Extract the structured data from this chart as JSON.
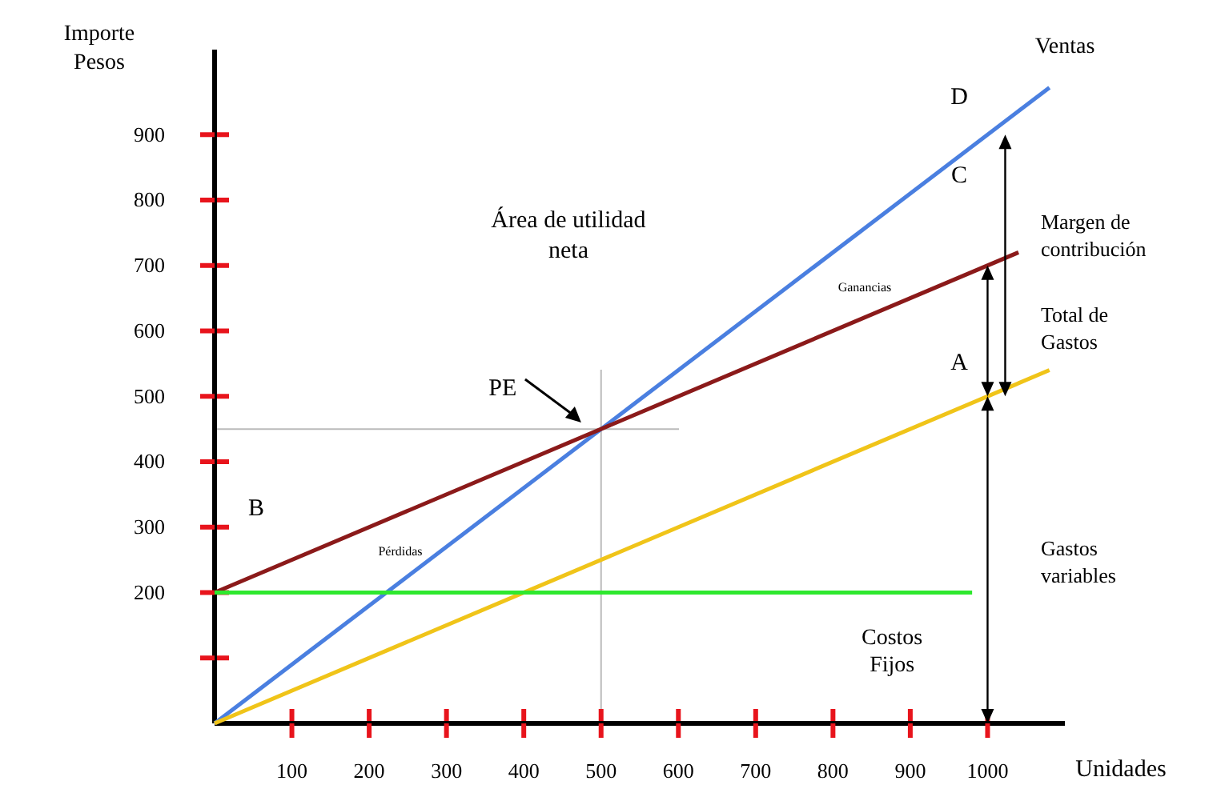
{
  "chart_data": {
    "type": "line",
    "xlabel": "Unidades",
    "ylabel": "Importe Pesos",
    "xlim": [
      0,
      1100
    ],
    "ylim": [
      0,
      1030
    ],
    "xticks": [
      100,
      200,
      300,
      400,
      500,
      600,
      700,
      800,
      900,
      1000
    ],
    "yticks": [
      {
        "value": 100,
        "label": null
      },
      200,
      300,
      400,
      500,
      600,
      700,
      800,
      900
    ],
    "grid": false,
    "line_style": "solid",
    "series": [
      {
        "name": "Ventas",
        "color": "#4a7fe0",
        "x": [
          0,
          1080
        ],
        "values": [
          0,
          972
        ]
      },
      {
        "color": "#8b1a1a",
        "x": [
          0,
          1040
        ],
        "values": [
          200,
          720
        ]
      },
      {
        "color": "#f0c419",
        "x": [
          0,
          1080
        ],
        "values": [
          0,
          540
        ]
      },
      {
        "name": "Costos Fijos",
        "color": "#2ee82e",
        "x": [
          0,
          980
        ],
        "values": [
          200,
          200
        ]
      }
    ],
    "ref_lines": [
      {
        "axis": "x",
        "value": 500,
        "color": "#bbbbbb"
      },
      {
        "axis": "y",
        "value": 450,
        "color": "#bbbbbb"
      }
    ],
    "annotations": [
      "Área de utilidad neta",
      "Ganancias",
      "Pérdidas",
      "A",
      "B",
      "C",
      "D",
      "Margen de contribución",
      "Total de Gastos",
      "Gastos variables",
      "PE"
    ]
  }
}
